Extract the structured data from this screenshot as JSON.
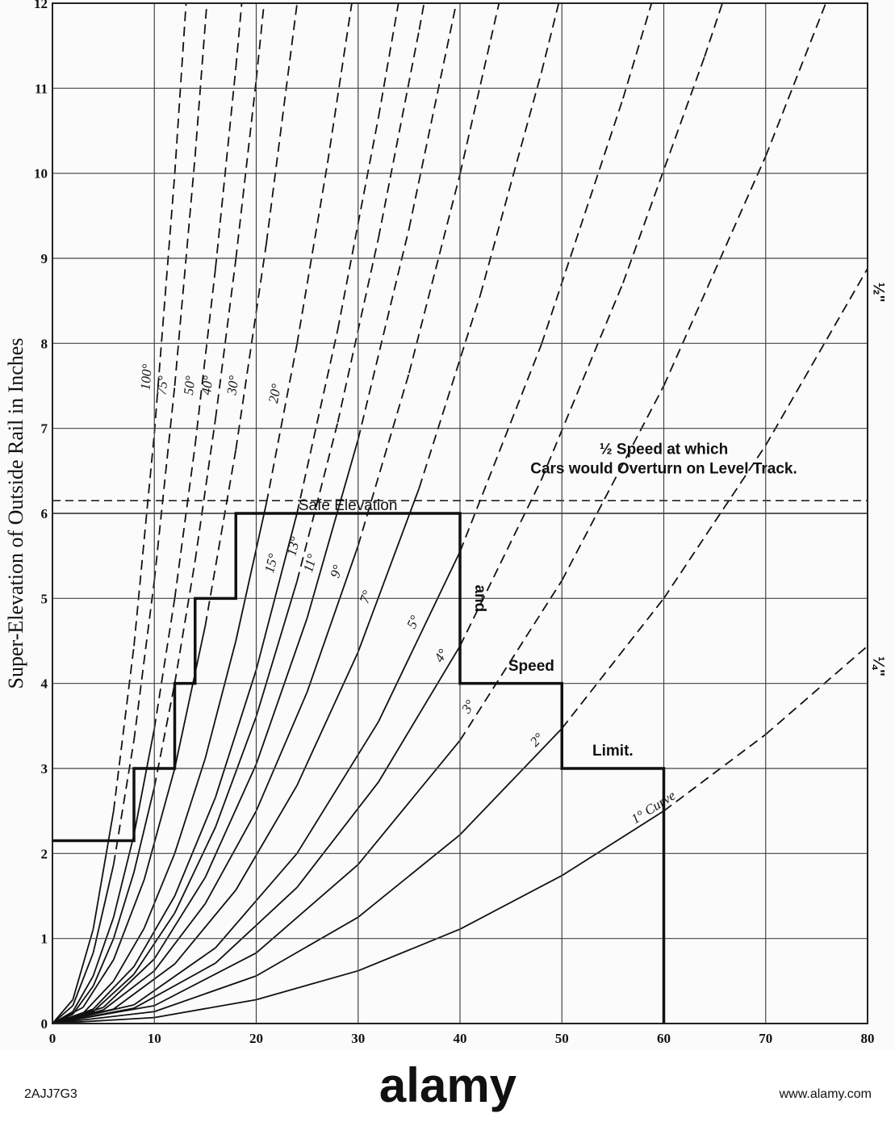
{
  "chart_data": {
    "type": "line",
    "y_label": "Super-Elevation of Outside Rail in Inches",
    "xlim": [
      0,
      80
    ],
    "ylim": [
      0,
      12
    ],
    "xticks": [
      0,
      10,
      20,
      30,
      40,
      50,
      60,
      70,
      80
    ],
    "yticks": [
      0,
      1,
      2,
      3,
      4,
      5,
      6,
      7,
      8,
      9,
      10,
      11,
      12
    ],
    "grid": true,
    "color": "#111111",
    "series": [
      {
        "name": "1° Curve",
        "x": [
          0,
          10,
          20,
          30,
          40,
          50,
          60,
          70,
          80
        ],
        "values": [
          0,
          0.07,
          0.28,
          0.62,
          1.11,
          1.74,
          2.5,
          3.4,
          4.44
        ]
      },
      {
        "name": "2°",
        "x": [
          0,
          10,
          20,
          30,
          40,
          50,
          60,
          70,
          80
        ],
        "values": [
          0,
          0.14,
          0.56,
          1.25,
          2.22,
          3.47,
          5.0,
          6.8,
          8.88
        ]
      },
      {
        "name": "3°",
        "x": [
          0,
          10,
          20,
          30,
          40,
          50,
          60,
          70,
          76
        ],
        "values": [
          0,
          0.21,
          0.83,
          1.87,
          3.33,
          5.21,
          7.5,
          10.2,
          12.03
        ]
      },
      {
        "name": "4°",
        "x": [
          0,
          8,
          16,
          24,
          32,
          40,
          48,
          56,
          64,
          66
        ],
        "values": [
          0,
          0.18,
          0.71,
          1.6,
          2.84,
          4.44,
          6.4,
          8.71,
          11.37,
          12.09
        ]
      },
      {
        "name": "5°",
        "x": [
          0,
          8,
          16,
          24,
          32,
          40,
          48,
          56,
          59
        ],
        "values": [
          0,
          0.22,
          0.89,
          2.0,
          3.55,
          5.55,
          7.99,
          10.88,
          12.08
        ]
      },
      {
        "name": "7°",
        "x": [
          0,
          6,
          12,
          18,
          24,
          30,
          36,
          42,
          48,
          50
        ],
        "values": [
          0,
          0.17,
          0.7,
          1.57,
          2.8,
          4.37,
          6.3,
          8.57,
          11.19,
          12.15
        ]
      },
      {
        "name": "9°",
        "x": [
          0,
          5,
          10,
          15,
          20,
          25,
          30,
          35,
          40,
          44
        ],
        "values": [
          0,
          0.16,
          0.62,
          1.41,
          2.5,
          3.9,
          5.62,
          7.65,
          9.99,
          12.09
        ]
      },
      {
        "name": "11°",
        "x": [
          0,
          5,
          10,
          15,
          20,
          25,
          30,
          35,
          40
        ],
        "values": [
          0,
          0.19,
          0.76,
          1.72,
          3.05,
          4.77,
          6.87,
          9.35,
          12.21
        ]
      },
      {
        "name": "13°",
        "x": [
          0,
          4,
          8,
          12,
          16,
          20,
          24,
          28,
          32,
          36,
          37
        ],
        "values": [
          0,
          0.14,
          0.58,
          1.3,
          2.31,
          3.61,
          5.2,
          7.07,
          9.24,
          11.69,
          12.35
        ]
      },
      {
        "name": "15°",
        "x": [
          0,
          4,
          8,
          12,
          16,
          20,
          24,
          28,
          32,
          34
        ],
        "values": [
          0,
          0.17,
          0.67,
          1.5,
          2.66,
          4.16,
          6.0,
          8.16,
          10.66,
          12.03
        ]
      },
      {
        "name": "20°",
        "x": [
          0,
          3,
          6,
          9,
          12,
          15,
          18,
          21,
          24,
          27,
          30
        ],
        "values": [
          0,
          0.12,
          0.5,
          1.12,
          2.0,
          3.12,
          4.5,
          6.12,
          7.99,
          10.12,
          12.49
        ]
      },
      {
        "name": "30°",
        "x": [
          0,
          3,
          6,
          9,
          12,
          15,
          18,
          21,
          24,
          25
        ],
        "values": [
          0,
          0.19,
          0.75,
          1.69,
          3.0,
          4.68,
          6.75,
          9.18,
          11.99,
          13.01
        ]
      },
      {
        "name": "40°",
        "x": [
          0,
          2,
          4,
          6,
          8,
          10,
          12,
          14,
          16,
          18,
          20,
          22
        ],
        "values": [
          0,
          0.11,
          0.44,
          1.0,
          1.78,
          2.78,
          4.0,
          5.44,
          7.11,
          8.99,
          11.1,
          13.44
        ]
      },
      {
        "name": "50°",
        "x": [
          0,
          2,
          4,
          6,
          8,
          10,
          12,
          14,
          16,
          18,
          20
        ],
        "values": [
          0,
          0.14,
          0.56,
          1.25,
          2.22,
          3.47,
          5.0,
          6.8,
          8.88,
          11.24,
          13.88
        ]
      },
      {
        "name": "75°",
        "x": [
          0,
          2,
          4,
          6,
          8,
          10,
          12,
          14,
          16
        ],
        "values": [
          0,
          0.21,
          0.83,
          1.87,
          3.33,
          5.21,
          7.5,
          10.2,
          13.32
        ]
      },
      {
        "name": "100°",
        "x": [
          0,
          2,
          4,
          6,
          8,
          10,
          12,
          14
        ],
        "values": [
          0,
          0.28,
          1.11,
          2.5,
          4.44,
          6.94,
          9.99,
          13.6
        ]
      }
    ],
    "limit_line": {
      "x": [
        0,
        8,
        8,
        12,
        12,
        14,
        14,
        18,
        18,
        40,
        40,
        50,
        50,
        60,
        60
      ],
      "y": [
        2.15,
        2.15,
        3,
        3,
        4,
        4,
        5,
        5,
        6,
        6,
        4,
        4,
        3,
        3,
        0
      ]
    },
    "reference_lines": [
      {
        "label": "Safe Elevation",
        "value": 6.0,
        "style": "solid"
      },
      {
        "label_lines": [
          "½ Speed at which",
          "Cars would Overturn on Level Track."
        ],
        "value": 6.15,
        "style": "dashed"
      }
    ],
    "annotations": [
      "and",
      "Speed",
      "Limit.",
      "½\"",
      "¼\""
    ]
  },
  "footer": {
    "logo": "alamy",
    "image_id": "2AJJ7G3",
    "url": "www.alamy.com"
  }
}
